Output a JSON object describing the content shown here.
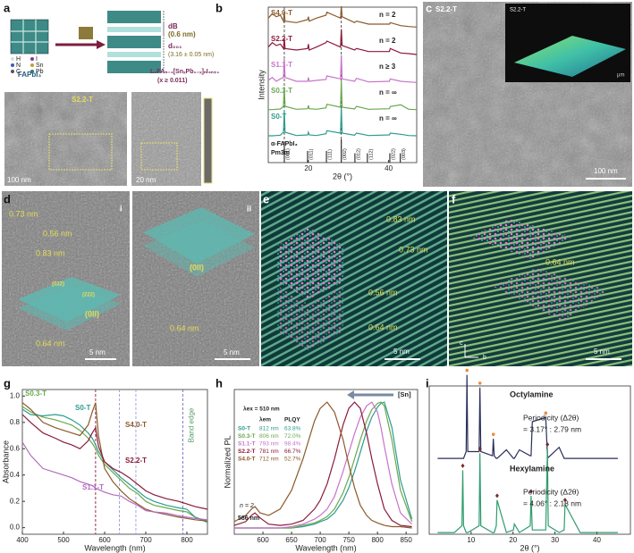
{
  "panel_labels": [
    "a",
    "b",
    "c",
    "d",
    "e",
    "f",
    "g",
    "h",
    "i"
  ],
  "a": {
    "fapbi3": "FAPbI₃",
    "legend": [
      "H",
      "I",
      "N",
      "Sn",
      "C",
      "Pb"
    ],
    "d_b": "dB",
    "d_b_value": "(0.6 nm)",
    "d_001": "d₀₀₁",
    "d_001_value": "(3.16 ± 0.05 nm)",
    "formula": "L₂FAₙ₋₁[SnₓPb₁₋ₓ]ₙI₃ₙ₊₁",
    "formula_condition": "(x ≥ 0.011)",
    "image_label": "S2.2-T",
    "scale_1": "100 nm",
    "scale_2": "20 nm"
  },
  "c": {
    "label": "S2.2-T",
    "inset_label": "S2.2-T",
    "inset_axis": "μm",
    "scale": "100 nm"
  },
  "d": {
    "label_i": "i",
    "label_ii": "ii",
    "spacings": [
      "0.73 nm",
      "0.56 nm",
      "0.83 nm",
      "0.64 nm",
      "0.64 nm"
    ],
    "planes": [
      "(022)",
      "(222)",
      "(0ll)",
      "(0ll)"
    ],
    "scales": [
      "5 nm",
      "5 nm"
    ]
  },
  "e": {
    "spacings": [
      "0.83 nm",
      "0.73 nm",
      "0.56 nm",
      "0.64 nm"
    ],
    "scale": "5 nm"
  },
  "f": {
    "spacing": "0.64 nm",
    "axes": [
      "c",
      "b"
    ],
    "scale": "5 nm"
  },
  "chart_data": [
    {
      "type": "line",
      "offset": true,
      "xlabel": "2θ (°)",
      "ylabel": "Intensity",
      "xlim": [
        10,
        47
      ],
      "ylim": [
        0,
        1
      ],
      "xticks": [
        20,
        40
      ],
      "x": [
        10,
        11,
        12,
        13,
        13.8,
        14,
        14.2,
        17,
        19.8,
        20,
        20.2,
        22,
        24.4,
        24.6,
        28,
        28.2,
        28.4,
        31.5,
        32,
        35,
        40.2,
        40.4,
        43,
        45,
        47
      ],
      "reference_lines": [
        14,
        28.2
      ],
      "n_labels": [
        "n = 2",
        "n = 2",
        "n ≥ 3",
        "n = ∞",
        "n = ∞"
      ],
      "series": [
        {
          "name": "S4.0-T",
          "color": "#8b5a2b",
          "values": [
            0.5,
            0.65,
            0.55,
            0.6,
            0.4,
            0.7,
            0.4,
            0.35,
            0.45,
            0.55,
            0.4,
            0.5,
            0.6,
            0.7,
            0.5,
            0.9,
            0.55,
            0.35,
            0.4,
            0.3,
            0.3,
            0.35,
            0.25,
            0.22,
            0.2
          ]
        },
        {
          "name": "S2.2-T",
          "color": "#8b1a3a",
          "values": [
            0.4,
            0.55,
            0.45,
            0.5,
            0.35,
            0.7,
            0.35,
            0.3,
            0.35,
            0.5,
            0.3,
            0.4,
            0.55,
            0.6,
            0.4,
            1,
            0.45,
            0.3,
            0.35,
            0.25,
            0.25,
            0.35,
            0.2,
            0.18,
            0.15
          ]
        },
        {
          "name": "S1.1-T",
          "color": "#c774c9",
          "values": [
            0.15,
            0.25,
            0.12,
            0.2,
            0.25,
            0.9,
            0.25,
            0.12,
            0.12,
            0.25,
            0.12,
            0.15,
            0.18,
            0.3,
            0.2,
            1,
            0.2,
            0.12,
            0.22,
            0.1,
            0.12,
            0.2,
            0.12,
            0.1,
            0.08
          ]
        },
        {
          "name": "S0.3-T",
          "color": "#6aa84f",
          "values": [
            0.04,
            0.04,
            0.05,
            0.06,
            0.15,
            0.8,
            0.15,
            0.05,
            0.07,
            0.18,
            0.07,
            0.05,
            0.1,
            0.22,
            0.12,
            1,
            0.12,
            0.06,
            0.15,
            0.05,
            0.07,
            0.14,
            0.2,
            0.05,
            0.04
          ]
        },
        {
          "name": "S0-T",
          "color": "#2e9c8f",
          "values": [
            0.03,
            0.03,
            0.04,
            0.05,
            0.15,
            0.9,
            0.15,
            0.04,
            0.06,
            0.15,
            0.06,
            0.04,
            0.1,
            0.2,
            0.12,
            1,
            0.12,
            0.05,
            0.12,
            0.04,
            0.06,
            0.12,
            0.08,
            0.04,
            0.03
          ]
        }
      ],
      "reference": {
        "name": "α-FAPbI₃",
        "space_group": "Pm3̄m",
        "color": "#333333",
        "positions": [
          14,
          19.8,
          24.5,
          28.2,
          31.6,
          34.7,
          40.3,
          42.9
        ],
        "intensities": [
          0.9,
          0.5,
          0.5,
          1,
          0.4,
          0.4,
          0.4,
          0.4
        ],
        "labels": [
          "(001)",
          "(011)",
          "(111)",
          "(002)",
          "(012)",
          "(112)",
          "(022)",
          "(003)"
        ]
      }
    },
    {
      "type": "line",
      "offset": false,
      "xlabel": "Wavelength (nm)",
      "ylabel": "Absorbance",
      "xlim": [
        400,
        850
      ],
      "ylim": [
        -0.05,
        1.05
      ],
      "xticks": [
        400,
        500,
        600,
        700,
        800
      ],
      "yticks": [
        {
          "value": 0,
          "label": "0.0"
        },
        0.2,
        0.4,
        0.6,
        0.8,
        {
          "value": 1,
          "label": "1.0"
        }
      ],
      "x": [
        400,
        420,
        450,
        480,
        500,
        520,
        540,
        560,
        570,
        578,
        585,
        600,
        620,
        640,
        660,
        680,
        700,
        720,
        750,
        780,
        800,
        820,
        850
      ],
      "reference_lines": [
        578,
        636,
        676,
        790
      ],
      "reference_line_colors": [
        "#8b1a3a",
        "#9a9ade",
        "#9a9ade",
        "#6a6abf"
      ],
      "band_edge_label": "Band edge",
      "series": [
        {
          "name": "S0.3-T",
          "color": "#6aa84f",
          "values": [
            0.92,
            0.88,
            0.84,
            0.82,
            0.8,
            0.78,
            0.74,
            0.68,
            0.64,
            0.6,
            0.55,
            0.48,
            0.42,
            0.36,
            0.3,
            0.26,
            0.2,
            0.17,
            0.15,
            0.13,
            0.12,
            0.08,
            0.05
          ]
        },
        {
          "name": "S0-T",
          "color": "#2e9c8f",
          "values": [
            0.9,
            0.86,
            0.85,
            0.86,
            0.85,
            0.82,
            0.78,
            0.72,
            0.68,
            0.63,
            0.58,
            0.5,
            0.44,
            0.38,
            0.33,
            0.28,
            0.23,
            0.2,
            0.17,
            0.15,
            0.14,
            0.08,
            0.04
          ]
        },
        {
          "name": "S4.0-T",
          "color": "#8b5a2b",
          "values": [
            0.95,
            0.9,
            0.8,
            0.76,
            0.74,
            0.72,
            0.7,
            0.78,
            0.88,
            0.95,
            0.7,
            0.45,
            0.35,
            0.28,
            0.22,
            0.18,
            0.14,
            0.12,
            0.1,
            0.08,
            0.07,
            0.06,
            0.05
          ]
        },
        {
          "name": "S2.2-T",
          "color": "#8b1a3a",
          "values": [
            0.86,
            0.8,
            0.72,
            0.68,
            0.65,
            0.63,
            0.6,
            0.66,
            0.72,
            0.76,
            0.62,
            0.5,
            0.45,
            0.42,
            0.38,
            0.33,
            0.28,
            0.25,
            0.22,
            0.2,
            0.18,
            0.16,
            0.14
          ]
        },
        {
          "name": "S1.1-T",
          "color": "#b36bc0",
          "values": [
            0.65,
            0.55,
            0.45,
            0.42,
            0.4,
            0.38,
            0.35,
            0.33,
            0.32,
            0.3,
            0.29,
            0.27,
            0.25,
            0.24,
            0.2,
            0.17,
            0.13,
            0.12,
            0.11,
            0.09,
            0.08,
            0.07,
            0.06
          ]
        }
      ]
    },
    {
      "type": "line",
      "offset": false,
      "xlabel": "Wavelength (nm)",
      "ylabel": "Normalized PL",
      "xlim": [
        550,
        870
      ],
      "ylim": [
        -0.05,
        1.1
      ],
      "xticks": [
        600,
        650,
        700,
        750,
        800,
        850
      ],
      "x": [
        550,
        570,
        580,
        586,
        595,
        610,
        630,
        650,
        670,
        690,
        700,
        712,
        725,
        740,
        750,
        760,
        770,
        781,
        790,
        800,
        806,
        812,
        825,
        840,
        860
      ],
      "excitation_label": "λex = 510 nm",
      "legend_header": [
        "λem",
        "PLQY"
      ],
      "arrow_label": "[Sn]",
      "annotations": [
        "n = 2",
        "586 nm"
      ],
      "peak_labels": [
        "812 nm",
        "806 nm",
        "793 nm",
        "781 nm",
        "712 nm"
      ],
      "plqy_labels": [
        "63.8%",
        "72.0%",
        "98.4%",
        "66.7%",
        "52.7%"
      ],
      "series": [
        {
          "name": "S0-T",
          "color": "#2e9c8f",
          "values": [
            0,
            0,
            0,
            0,
            0,
            0,
            0,
            0,
            0.01,
            0.03,
            0.05,
            0.07,
            0.12,
            0.22,
            0.32,
            0.45,
            0.6,
            0.77,
            0.88,
            0.96,
            0.99,
            1,
            0.8,
            0.38,
            0.07
          ]
        },
        {
          "name": "S0.3-T",
          "color": "#6aa84f",
          "values": [
            0,
            0,
            0,
            0,
            0,
            0,
            0,
            0,
            0.02,
            0.04,
            0.06,
            0.09,
            0.15,
            0.28,
            0.4,
            0.55,
            0.7,
            0.85,
            0.94,
            0.99,
            1,
            0.97,
            0.7,
            0.3,
            0.05
          ]
        },
        {
          "name": "S1.1-T",
          "color": "#c774c9",
          "values": [
            0,
            0,
            0,
            0,
            0,
            0,
            0,
            0.01,
            0.03,
            0.07,
            0.1,
            0.15,
            0.25,
            0.45,
            0.6,
            0.75,
            0.88,
            0.97,
            1,
            0.92,
            0.8,
            0.65,
            0.35,
            0.12,
            0.03
          ]
        },
        {
          "name": "S2.2-T",
          "color": "#8b1a3a",
          "values": [
            0.02,
            0.05,
            0.1,
            0.12,
            0.08,
            0.03,
            0.02,
            0.03,
            0.06,
            0.15,
            0.22,
            0.35,
            0.55,
            0.82,
            0.95,
            1,
            0.95,
            0.75,
            0.55,
            0.35,
            0.25,
            0.15,
            0.06,
            0.02,
            0.01
          ]
        },
        {
          "name": "S4.0-T",
          "color": "#8b5a2b",
          "values": [
            0.05,
            0.1,
            0.15,
            0.17,
            0.12,
            0.1,
            0.15,
            0.3,
            0.55,
            0.85,
            0.95,
            1,
            0.92,
            0.7,
            0.5,
            0.32,
            0.18,
            0.1,
            0.06,
            0.04,
            0.03,
            0.02,
            0.01,
            0.01,
            0
          ]
        }
      ]
    },
    {
      "type": "line",
      "offset": true,
      "xlabel": "2θ (°)",
      "xlim": [
        0,
        48
      ],
      "ylim": [
        0,
        1
      ],
      "xticks": [
        10,
        20,
        30,
        40
      ],
      "x": [
        2,
        6,
        7.8,
        8,
        8.2,
        8.8,
        9,
        9.2,
        11.9,
        12.1,
        12.3,
        15.1,
        15.3,
        15.5,
        16,
        16.2,
        18.4,
        20.1,
        20.3,
        21.5,
        24.1,
        24.3,
        24.6,
        27.8,
        28.2,
        28.4,
        31,
        32.2,
        32.4,
        36,
        40,
        45
      ],
      "series": [
        {
          "name": "Octylamine",
          "color": "#2a2f5a",
          "marker": "circle",
          "marker_color": "#f08a3c",
          "annotation": [
            "Periodicity (Δ2θ)",
            "= 3.17° : 2.79 nm"
          ],
          "values": [
            0.02,
            0.02,
            0.02,
            0.02,
            0.02,
            0.1,
            1,
            0.1,
            0.1,
            0.85,
            0.1,
            0.05,
            0.25,
            0.05,
            0.02,
            0.02,
            0.12,
            0.02,
            0.02,
            0.12,
            0.05,
            0.05,
            0.45,
            0.5,
            0.05,
            0.03,
            0.15,
            0.02,
            0.02,
            0.02,
            0.02,
            0.02
          ]
        },
        {
          "name": "Hexylamine",
          "color": "#2e9c6f",
          "marker": "diamond",
          "marker_color": "#7a2a2a",
          "annotation": [
            "Periodicity (Δ2θ)",
            "= 4.06° : 2.18 nm"
          ],
          "values": [
            0.02,
            0.02,
            0.1,
            0.75,
            0.1,
            0.02,
            0.02,
            0.02,
            0.1,
            0.95,
            0.1,
            0.02,
            0.02,
            0.02,
            0.1,
            0.4,
            0.02,
            0.05,
            0.12,
            0.02,
            0.1,
            0.45,
            0.05,
            0.05,
            1,
            0.1,
            0.02,
            0.05,
            0.35,
            0.02,
            0.02,
            0.02
          ]
        }
      ]
    }
  ]
}
